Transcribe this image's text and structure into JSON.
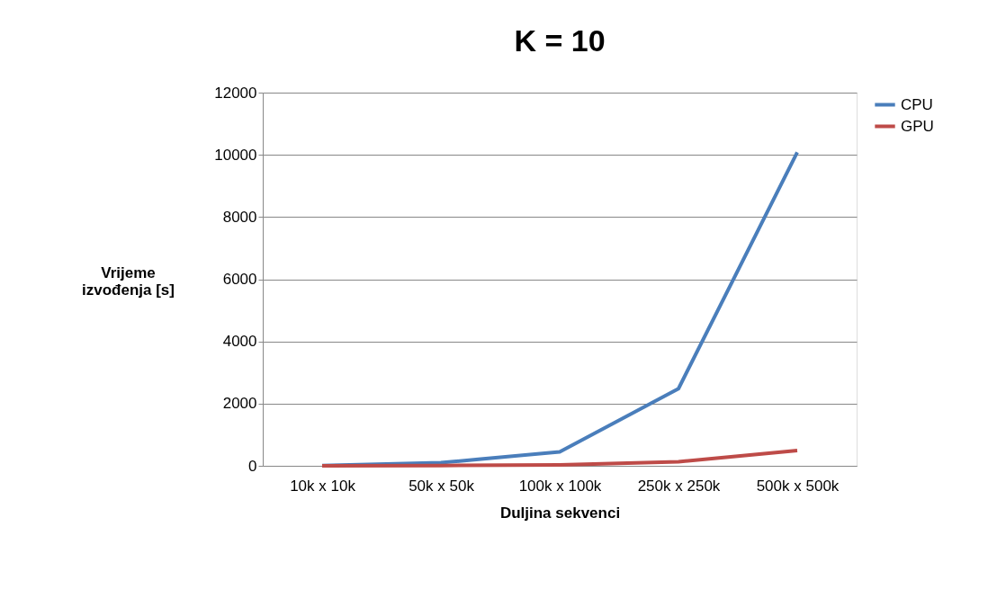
{
  "chart_data": {
    "type": "line",
    "title": "K = 10",
    "xlabel": "Duljina sekvenci",
    "ylabel": "Vrijeme izvođenja [s]",
    "categories": [
      "10k x 10k",
      "50k x 50k",
      "100k x 100k",
      "250k x 250k",
      "500k x 500k"
    ],
    "series": [
      {
        "name": "CPU",
        "color": "#4a7ebb",
        "values": [
          10,
          100,
          450,
          2480,
          10080
        ]
      },
      {
        "name": "GPU",
        "color": "#be4b48",
        "values": [
          0,
          10,
          30,
          130,
          490
        ]
      }
    ],
    "ylim": [
      0,
      12000
    ],
    "yticks": [
      0,
      2000,
      4000,
      6000,
      8000,
      10000,
      12000
    ],
    "grid": "y",
    "legend": "right",
    "marker": "none",
    "line_style": "solid"
  }
}
